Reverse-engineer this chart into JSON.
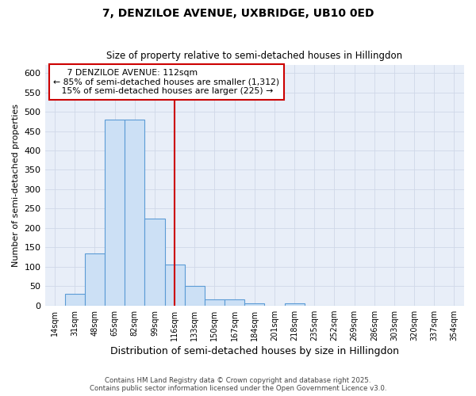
{
  "title_line1": "7, DENZILOE AVENUE, UXBRIDGE, UB10 0ED",
  "title_line2": "Size of property relative to semi-detached houses in Hillingdon",
  "xlabel": "Distribution of semi-detached houses by size in Hillingdon",
  "ylabel": "Number of semi-detached properties",
  "categories": [
    14,
    31,
    48,
    65,
    82,
    99,
    116,
    133,
    150,
    167,
    184,
    201,
    218,
    235,
    252,
    269,
    286,
    303,
    320,
    337,
    354
  ],
  "values": [
    0,
    30,
    135,
    480,
    480,
    225,
    105,
    50,
    15,
    15,
    5,
    0,
    5,
    0,
    0,
    0,
    0,
    0,
    0,
    0,
    0
  ],
  "bar_color": "#cce0f5",
  "bar_edge_color": "#5b9bd5",
  "vline_x": 116,
  "vline_color": "#cc0000",
  "annotation_box_edge": "#cc0000",
  "annotation_box_facecolor": "#ffffff",
  "grid_color": "#d0d8e8",
  "background_color": "#e8eef8",
  "ylim": [
    0,
    620
  ],
  "yticks": [
    0,
    50,
    100,
    150,
    200,
    250,
    300,
    350,
    400,
    450,
    500,
    550,
    600
  ],
  "footnote_line1": "Contains HM Land Registry data © Crown copyright and database right 2025.",
  "footnote_line2": "Contains public sector information licensed under the Open Government Licence v3.0."
}
